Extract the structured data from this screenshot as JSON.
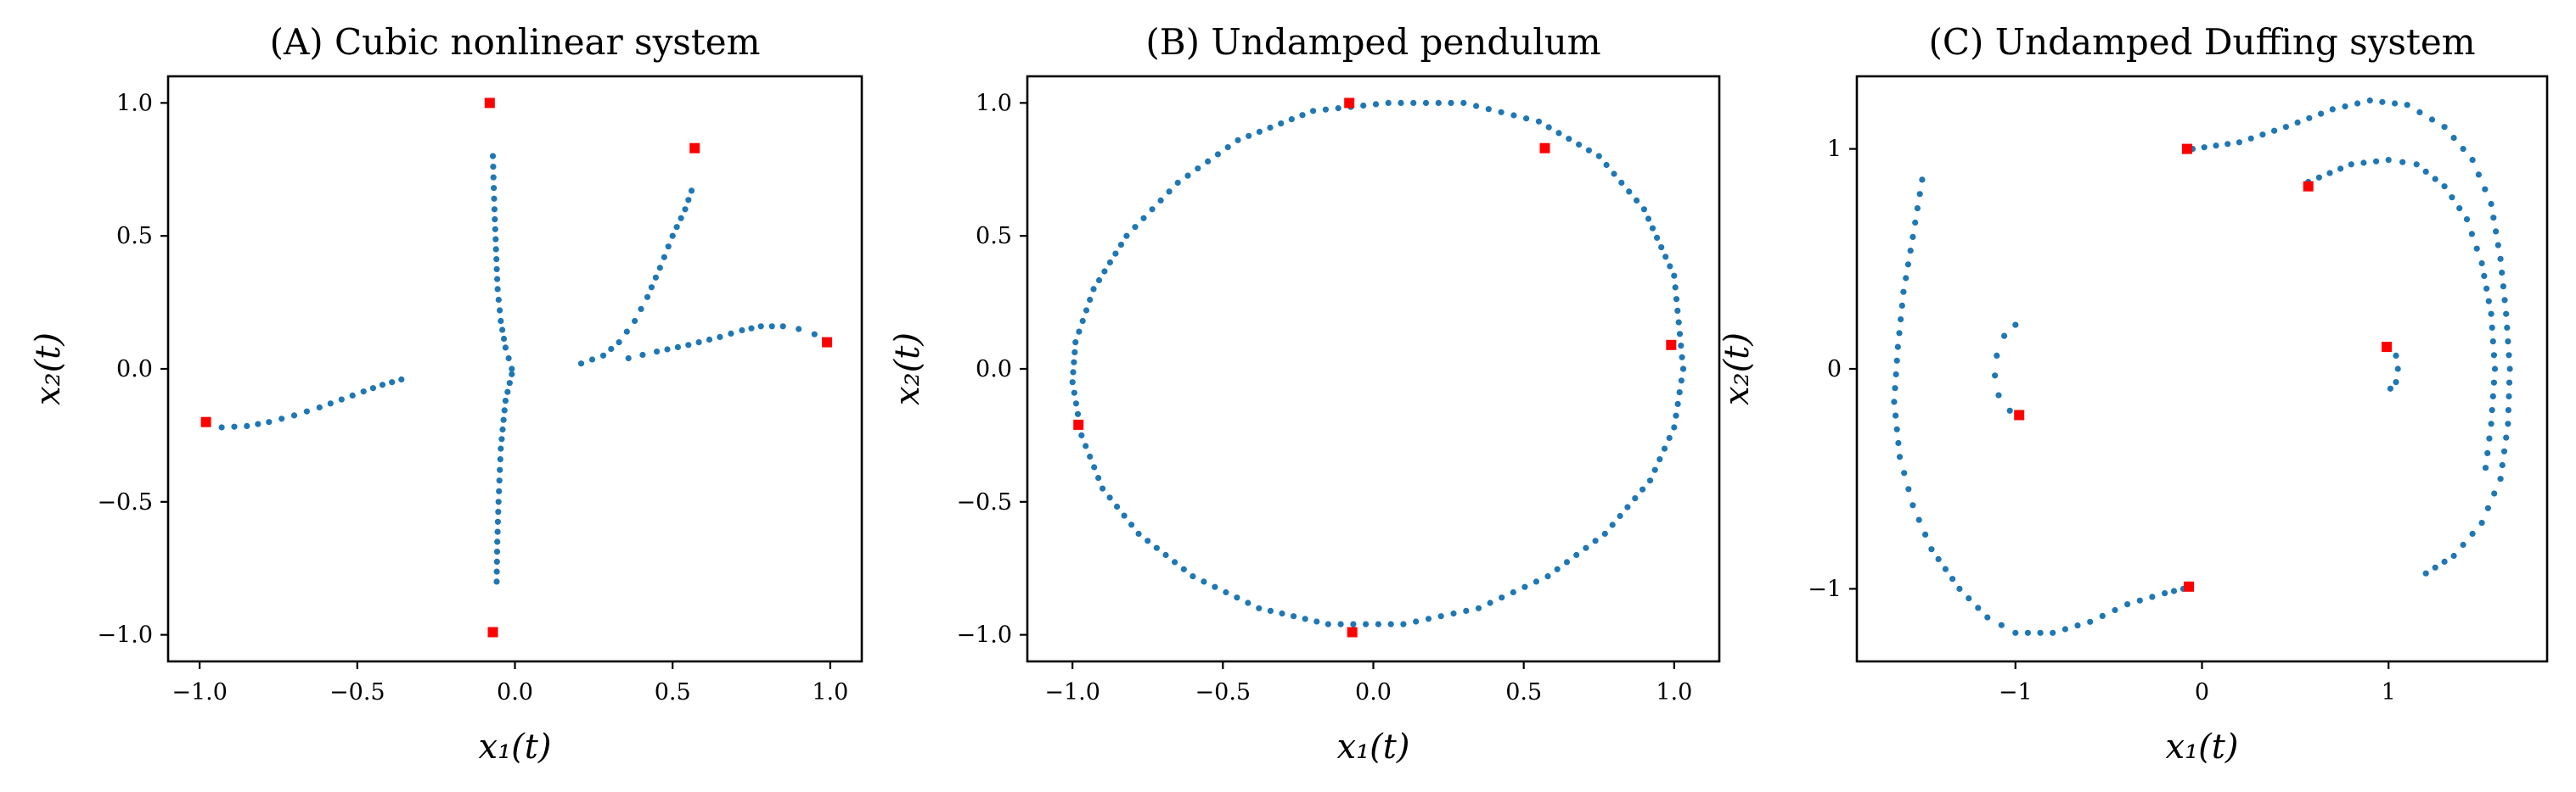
{
  "chart_data": [
    {
      "type": "scatter",
      "title": "(A) Cubic nonlinear system",
      "xlabel": "x₁(t)",
      "ylabel": "x₂(t)",
      "xlim": [
        -1.1,
        1.1
      ],
      "ylim": [
        -1.1,
        1.1
      ],
      "xticks": [
        -1.0,
        -0.5,
        0.0,
        0.5,
        1.0
      ],
      "xtick_labels": [
        "−1.0",
        "−0.5",
        "0.0",
        "0.5",
        "1.0"
      ],
      "yticks": [
        -1.0,
        -0.5,
        0.0,
        0.5,
        1.0
      ],
      "ytick_labels": [
        "−1.0",
        "−0.5",
        "0.0",
        "0.5",
        "1.0"
      ],
      "grid": false,
      "series": [
        {
          "role": "trajectory",
          "color": "#1f77b4",
          "marker": "dot",
          "curves": [
            [
              [
                -0.93,
                -0.22
              ],
              [
                -0.85,
                -0.215
              ],
              [
                -0.78,
                -0.2
              ],
              [
                -0.7,
                -0.175
              ],
              [
                -0.62,
                -0.145
              ],
              [
                -0.55,
                -0.115
              ],
              [
                -0.48,
                -0.085
              ],
              [
                -0.42,
                -0.06
              ],
              [
                -0.36,
                -0.04
              ]
            ],
            [
              [
                -0.07,
                0.8
              ],
              [
                -0.065,
                0.6
              ],
              [
                -0.06,
                0.45
              ],
              [
                -0.055,
                0.3
              ],
              [
                -0.045,
                0.18
              ],
              [
                -0.03,
                0.08
              ],
              [
                -0.01,
                0.0
              ]
            ],
            [
              [
                -0.01,
                -0.02
              ],
              [
                -0.03,
                -0.12
              ],
              [
                -0.045,
                -0.3
              ],
              [
                -0.052,
                -0.5
              ],
              [
                -0.056,
                -0.65
              ],
              [
                -0.058,
                -0.8
              ]
            ],
            [
              [
                0.21,
                0.02
              ],
              [
                0.28,
                0.05
              ],
              [
                0.33,
                0.1
              ],
              [
                0.38,
                0.18
              ],
              [
                0.42,
                0.27
              ],
              [
                0.46,
                0.38
              ],
              [
                0.5,
                0.5
              ],
              [
                0.54,
                0.6
              ],
              [
                0.56,
                0.67
              ]
            ],
            [
              [
                0.36,
                0.04
              ],
              [
                0.45,
                0.065
              ],
              [
                0.55,
                0.09
              ],
              [
                0.65,
                0.12
              ],
              [
                0.72,
                0.145
              ],
              [
                0.78,
                0.16
              ],
              [
                0.85,
                0.16
              ],
              [
                0.9,
                0.15
              ],
              [
                0.95,
                0.13
              ]
            ]
          ]
        },
        {
          "role": "initial-points",
          "color": "#ff0000",
          "marker": "square",
          "points": [
            [
              -0.08,
              1.0
            ],
            [
              0.57,
              0.83
            ],
            [
              0.99,
              0.1
            ],
            [
              -0.98,
              -0.2
            ],
            [
              -0.07,
              -0.99
            ]
          ]
        }
      ]
    },
    {
      "type": "scatter",
      "title": "(B) Undamped pendulum",
      "xlabel": "x₁(t)",
      "ylabel": "x₂(t)",
      "xlim": [
        -1.15,
        1.15
      ],
      "ylim": [
        -1.1,
        1.1
      ],
      "xticks": [
        -1.0,
        -0.5,
        0.0,
        0.5,
        1.0
      ],
      "xtick_labels": [
        "−1.0",
        "−0.5",
        "0.0",
        "0.5",
        "1.0"
      ],
      "yticks": [
        -1.0,
        -0.5,
        0.0,
        0.5,
        1.0
      ],
      "ytick_labels": [
        "−1.0",
        "−0.5",
        "0.0",
        "0.5",
        "1.0"
      ],
      "grid": false,
      "series": [
        {
          "role": "trajectory",
          "color": "#1f77b4",
          "marker": "dot",
          "curves": [
            [
              [
                1.03,
                0.0
              ],
              [
                1.0,
                0.35
              ],
              [
                0.9,
                0.6
              ],
              [
                0.75,
                0.8
              ],
              [
                0.55,
                0.93
              ],
              [
                0.3,
                1.0
              ],
              [
                0.05,
                1.0
              ],
              [
                -0.2,
                0.97
              ],
              [
                -0.45,
                0.86
              ],
              [
                -0.65,
                0.7
              ],
              [
                -0.82,
                0.5
              ],
              [
                -0.93,
                0.3
              ],
              [
                -0.99,
                0.1
              ],
              [
                -1.0,
                -0.05
              ],
              [
                -0.97,
                -0.25
              ],
              [
                -0.9,
                -0.45
              ],
              [
                -0.78,
                -0.62
              ],
              [
                -0.6,
                -0.78
              ],
              [
                -0.38,
                -0.9
              ],
              [
                -0.15,
                -0.96
              ],
              [
                0.1,
                -0.96
              ],
              [
                0.35,
                -0.9
              ],
              [
                0.58,
                -0.78
              ],
              [
                0.77,
                -0.62
              ],
              [
                0.92,
                -0.42
              ],
              [
                1.0,
                -0.22
              ],
              [
                1.03,
                0.0
              ]
            ]
          ]
        },
        {
          "role": "initial-points",
          "color": "#ff0000",
          "marker": "square",
          "points": [
            [
              -0.08,
              1.0
            ],
            [
              0.57,
              0.83
            ],
            [
              0.99,
              0.09
            ],
            [
              -0.98,
              -0.21
            ],
            [
              -0.07,
              -0.99
            ]
          ]
        }
      ]
    },
    {
      "type": "scatter",
      "title": "(C) Undamped Duffing system",
      "xlabel": "x₁(t)",
      "ylabel": "x₂(t)",
      "xlim": [
        -1.85,
        1.85
      ],
      "ylim": [
        -1.33,
        1.33
      ],
      "xticks": [
        -1,
        0,
        1
      ],
      "xtick_labels": [
        "−1",
        "0",
        "1"
      ],
      "yticks": [
        -1,
        0,
        1
      ],
      "ytick_labels": [
        "−1",
        "0",
        "1"
      ],
      "grid": false,
      "series": [
        {
          "role": "trajectory",
          "color": "#1f77b4",
          "marker": "dot",
          "curves": [
            [
              [
                -1.0,
                0.2
              ],
              [
                -1.06,
                0.15
              ],
              [
                -1.1,
                0.06
              ],
              [
                -1.11,
                -0.03
              ],
              [
                -1.09,
                -0.12
              ],
              [
                -1.03,
                -0.19
              ],
              [
                -0.97,
                -0.21
              ]
            ],
            [
              [
                1.0,
                0.1
              ],
              [
                1.04,
                0.06
              ],
              [
                1.05,
                0.0
              ],
              [
                1.04,
                -0.06
              ],
              [
                1.01,
                -0.09
              ]
            ],
            [
              [
                -0.05,
                1.0
              ],
              [
                0.2,
                1.03
              ],
              [
                0.45,
                1.1
              ],
              [
                0.7,
                1.18
              ],
              [
                0.9,
                1.22
              ],
              [
                1.1,
                1.2
              ],
              [
                1.3,
                1.1
              ],
              [
                1.45,
                0.95
              ],
              [
                1.55,
                0.75
              ],
              [
                1.6,
                0.5
              ],
              [
                1.63,
                0.25
              ],
              [
                1.65,
                0.0
              ],
              [
                1.64,
                -0.25
              ],
              [
                1.6,
                -0.5
              ],
              [
                1.5,
                -0.7
              ],
              [
                1.35,
                -0.85
              ],
              [
                1.2,
                -0.93
              ]
            ],
            [
              [
                0.57,
                0.85
              ],
              [
                0.8,
                0.93
              ],
              [
                1.0,
                0.95
              ],
              [
                1.15,
                0.93
              ],
              [
                1.3,
                0.83
              ],
              [
                1.42,
                0.68
              ],
              [
                1.5,
                0.48
              ],
              [
                1.55,
                0.25
              ],
              [
                1.57,
                0.0
              ],
              [
                1.55,
                -0.25
              ],
              [
                1.52,
                -0.45
              ]
            ],
            [
              [
                -1.5,
                0.86
              ],
              [
                -1.55,
                0.6
              ],
              [
                -1.6,
                0.35
              ],
              [
                -1.63,
                0.1
              ],
              [
                -1.65,
                -0.15
              ],
              [
                -1.62,
                -0.4
              ],
              [
                -1.55,
                -0.62
              ],
              [
                -1.45,
                -0.82
              ],
              [
                -1.3,
                -1.0
              ],
              [
                -1.15,
                -1.13
              ],
              [
                -1.0,
                -1.2
              ],
              [
                -0.8,
                -1.2
              ],
              [
                -0.6,
                -1.15
              ],
              [
                -0.4,
                -1.07
              ],
              [
                -0.2,
                -1.02
              ],
              [
                -0.1,
                -1.0
              ]
            ]
          ]
        },
        {
          "role": "initial-points",
          "color": "#ff0000",
          "marker": "square",
          "points": [
            [
              -0.08,
              1.0
            ],
            [
              0.57,
              0.83
            ],
            [
              0.99,
              0.1
            ],
            [
              -0.98,
              -0.21
            ],
            [
              -0.07,
              -0.99
            ]
          ]
        }
      ]
    }
  ]
}
